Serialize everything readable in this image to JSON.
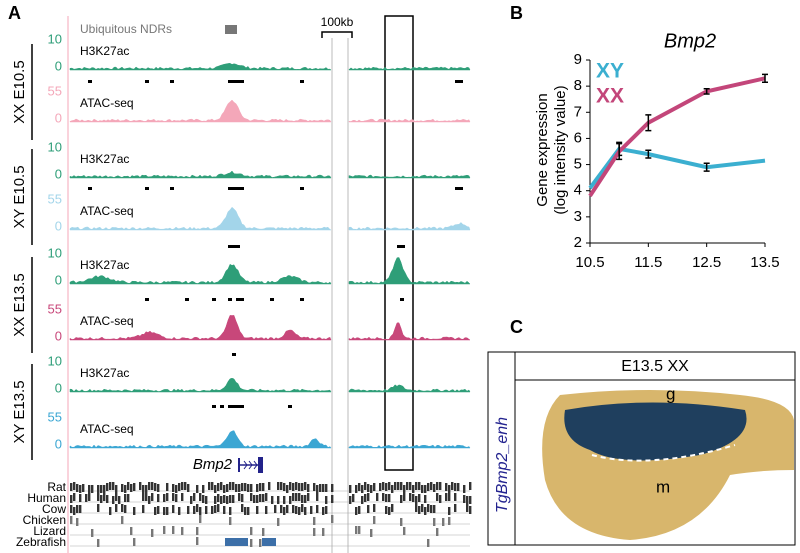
{
  "panel_a": {
    "letter": "A",
    "ndr_label": "Ubiquitous NDRs",
    "scale_label": "100kb",
    "gene": "Bmp2",
    "groups": [
      {
        "label": "XX E10.5",
        "tracks": [
          {
            "name": "H3K27ac",
            "max": "10",
            "min": "0",
            "color": "#2e9e78"
          },
          {
            "name": "ATAC-seq",
            "max": "55",
            "min": "0",
            "color": "#f4a7b9"
          }
        ]
      },
      {
        "label": "XY E10.5",
        "tracks": [
          {
            "name": "H3K27ac",
            "max": "10",
            "min": "0",
            "color": "#2e9e78"
          },
          {
            "name": "ATAC-seq",
            "max": "55",
            "min": "0",
            "color": "#a3d5ea"
          }
        ]
      },
      {
        "label": "XX E13.5",
        "tracks": [
          {
            "name": "H3K27ac",
            "max": "10",
            "min": "0",
            "color": "#2e9e78"
          },
          {
            "name": "ATAC-seq",
            "max": "55",
            "min": "0",
            "color": "#c8477a"
          }
        ]
      },
      {
        "label": "XY E13.5",
        "tracks": [
          {
            "name": "H3K27ac",
            "max": "10",
            "min": "0",
            "color": "#2e9e78"
          },
          {
            "name": "ATAC-seq",
            "max": "55",
            "min": "0",
            "color": "#3ba6d3"
          }
        ]
      }
    ],
    "species": [
      "Rat",
      "Human",
      "Cow",
      "Chicken",
      "Lizard",
      "Zebrafish"
    ]
  },
  "chart_data": {
    "type": "line",
    "letter": "B",
    "title": "Bmp2",
    "y_label": [
      "Gene expression",
      "(log intensity value)"
    ],
    "x": [
      10.5,
      11,
      11.5,
      12.5,
      13.5
    ],
    "xlim": [
      10.5,
      13.5
    ],
    "xticks": [
      10.5,
      11.5,
      12.5,
      13.5
    ],
    "ylim": [
      2,
      9
    ],
    "yticks": [
      2,
      3,
      4,
      5,
      6,
      7,
      8,
      9
    ],
    "series": [
      {
        "name": "XY",
        "color": "#3bafd0",
        "values": [
          4.1,
          5.6,
          5.4,
          4.9,
          5.15
        ],
        "errors": [
          null,
          0.25,
          0.15,
          0.15,
          null
        ]
      },
      {
        "name": "XX",
        "color": "#c3467a",
        "values": [
          3.8,
          5.5,
          6.6,
          7.8,
          8.3
        ],
        "errors": [
          null,
          0.3,
          0.3,
          0.1,
          0.15
        ]
      }
    ]
  },
  "panel_c": {
    "letter": "C",
    "header": "E13.5 XX",
    "construct": "TgBmp2_enh",
    "labels": [
      "g",
      "m"
    ]
  }
}
